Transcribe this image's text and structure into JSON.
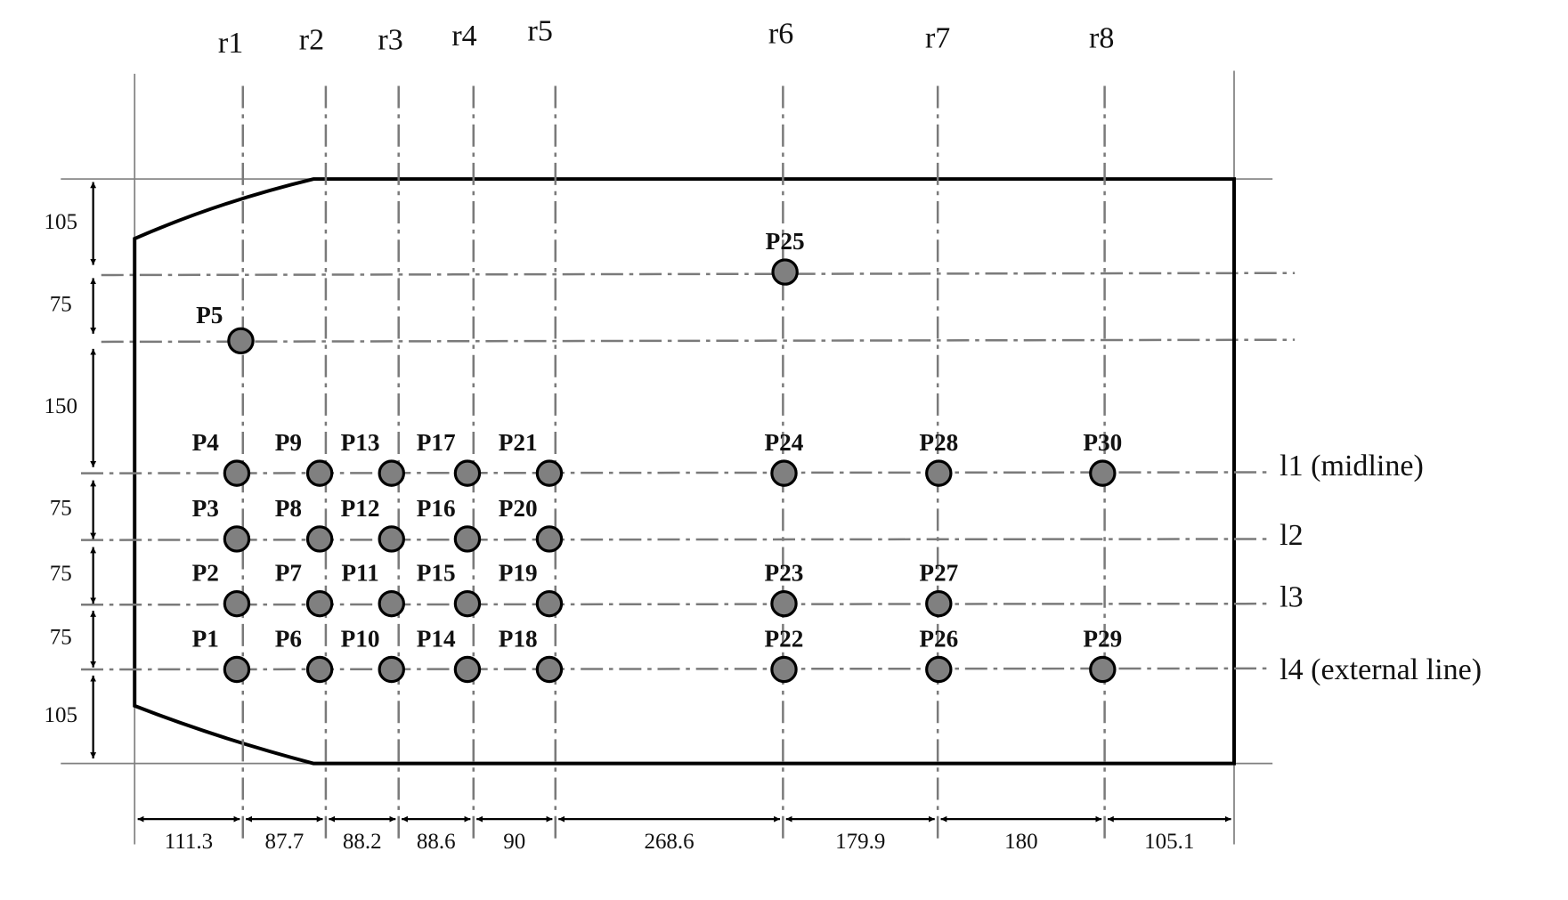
{
  "columns": [
    "r1",
    "r2",
    "r3",
    "r4",
    "r5",
    "r6",
    "r7",
    "r8"
  ],
  "lines": [
    "l1 (midline)",
    "l2",
    "l3",
    "l4 (external line)"
  ],
  "points": [
    "P1",
    "P2",
    "P3",
    "P4",
    "P5",
    "P6",
    "P7",
    "P8",
    "P9",
    "P10",
    "P11",
    "P12",
    "P13",
    "P14",
    "P15",
    "P16",
    "P17",
    "P18",
    "P19",
    "P20",
    "P21",
    "P22",
    "P23",
    "P24",
    "P25",
    "P26",
    "P27",
    "P28",
    "P29",
    "P30"
  ],
  "dimensions": {
    "horizontal": [
      111.3,
      87.7,
      88.2,
      88.6,
      90,
      268.6,
      179.9,
      180,
      105.1
    ],
    "vertical": [
      105,
      75,
      150,
      75,
      75,
      75,
      105
    ]
  }
}
